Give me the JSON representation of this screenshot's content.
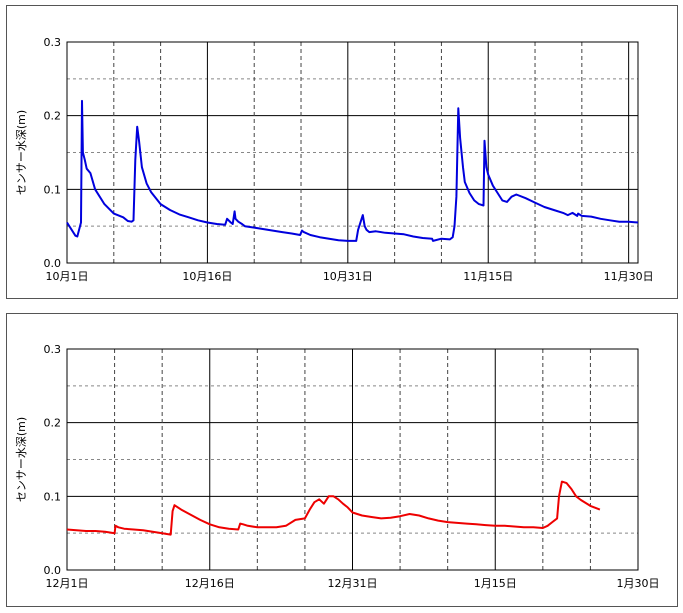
{
  "chart_data": [
    {
      "type": "line",
      "ylabel": "センサー水深(m)",
      "ylim": [
        0,
        0.3
      ],
      "yticks": [
        "0.0",
        "0.1",
        "0.2",
        "0.3"
      ],
      "y_gridlines_dashed": [
        0.05,
        0.15,
        0.25
      ],
      "xlim": [
        0,
        61
      ],
      "xticks": [
        {
          "x": 0,
          "label": "10月1日"
        },
        {
          "x": 15,
          "label": "10月16日"
        },
        {
          "x": 30,
          "label": "10月31日"
        },
        {
          "x": 45,
          "label": "11月15日"
        },
        {
          "x": 60,
          "label": "11月30日"
        }
      ],
      "x_gridlines_dashed": [
        5,
        10,
        20,
        25,
        35,
        40,
        50,
        55
      ],
      "grid": true,
      "series": [
        {
          "color": "#0000dd",
          "x": [
            0,
            0.9,
            1.1,
            1.5,
            1.6,
            1.7,
            1.9,
            2.1,
            2.5,
            3,
            4,
            5,
            6,
            6.5,
            6.9,
            7.1,
            7.3,
            7.5,
            7.7,
            8,
            8.5,
            9,
            10,
            11,
            12,
            13,
            14,
            15,
            16,
            16.9,
            17.1,
            17.5,
            17.7,
            17.9,
            18,
            18.3,
            18.7,
            19,
            20,
            21,
            22,
            23,
            24,
            24.9,
            25.1,
            25.3,
            26,
            27,
            28,
            29,
            30,
            30.9,
            31.1,
            31.6,
            31.8,
            32,
            32.3,
            33,
            34,
            35,
            36,
            37,
            38,
            39,
            39.1,
            40,
            40.9,
            41.2,
            41.4,
            41.6,
            41.8,
            42,
            42.3,
            42.5,
            43,
            43.5,
            44,
            44.5,
            44.6,
            44.8,
            45,
            45.5,
            46,
            46.5,
            47,
            47.5,
            48,
            49,
            50,
            51,
            52,
            53,
            53.5,
            54,
            54.5,
            54.6,
            55,
            56,
            57,
            58,
            59,
            60,
            61
          ],
          "y": [
            0.055,
            0.037,
            0.036,
            0.055,
            0.22,
            0.15,
            0.14,
            0.128,
            0.122,
            0.1,
            0.08,
            0.067,
            0.062,
            0.057,
            0.056,
            0.058,
            0.14,
            0.185,
            0.165,
            0.13,
            0.108,
            0.096,
            0.08,
            0.072,
            0.066,
            0.062,
            0.058,
            0.055,
            0.053,
            0.052,
            0.06,
            0.055,
            0.053,
            0.07,
            0.06,
            0.056,
            0.053,
            0.05,
            0.048,
            0.046,
            0.044,
            0.042,
            0.04,
            0.038,
            0.044,
            0.042,
            0.038,
            0.035,
            0.033,
            0.031,
            0.03,
            0.03,
            0.045,
            0.065,
            0.05,
            0.045,
            0.042,
            0.043,
            0.041,
            0.04,
            0.039,
            0.036,
            0.034,
            0.033,
            0.03,
            0.033,
            0.032,
            0.035,
            0.05,
            0.09,
            0.21,
            0.17,
            0.13,
            0.11,
            0.095,
            0.085,
            0.08,
            0.078,
            0.166,
            0.13,
            0.12,
            0.105,
            0.095,
            0.085,
            0.083,
            0.09,
            0.093,
            0.088,
            0.082,
            0.076,
            0.072,
            0.068,
            0.065,
            0.068,
            0.064,
            0.067,
            0.064,
            0.063,
            0.06,
            0.058,
            0.056,
            0.056,
            0.055
          ]
        }
      ]
    },
    {
      "type": "line",
      "ylabel": "センサー水深(m)",
      "ylim": [
        0,
        0.3
      ],
      "yticks": [
        "0.0",
        "0.1",
        "0.2",
        "0.3"
      ],
      "y_gridlines_dashed": [
        0.05,
        0.15,
        0.25
      ],
      "xlim": [
        0,
        60
      ],
      "xticks": [
        {
          "x": 0,
          "label": "12月1日"
        },
        {
          "x": 15,
          "label": "12月16日"
        },
        {
          "x": 30,
          "label": "12月31日"
        },
        {
          "x": 45,
          "label": "1月15日"
        },
        {
          "x": 60,
          "label": "1月30日"
        }
      ],
      "x_gridlines_dashed": [
        5,
        10,
        20,
        25,
        35,
        40,
        50,
        55
      ],
      "grid": true,
      "series": [
        {
          "color": "#ee0000",
          "x": [
            0,
            1,
            2,
            3,
            4,
            5,
            5.1,
            5.4,
            6,
            7,
            8,
            9,
            10,
            10.9,
            11.1,
            11.3,
            12,
            13,
            14,
            15,
            16,
            17,
            18,
            18.2,
            18.5,
            19,
            20,
            21,
            22,
            23,
            24,
            25,
            25.5,
            26,
            26.5,
            27,
            27.5,
            28,
            28.5,
            29,
            29.5,
            30,
            31,
            32,
            33,
            34,
            35,
            36,
            37,
            38,
            39,
            40,
            41,
            42,
            43,
            44,
            45,
            46,
            47,
            48,
            49,
            50,
            50.5,
            51,
            51.5,
            51.7,
            52,
            52.5,
            53,
            53.5,
            54,
            55,
            56
          ],
          "y": [
            0.055,
            0.054,
            0.053,
            0.053,
            0.052,
            0.05,
            0.06,
            0.058,
            0.056,
            0.055,
            0.054,
            0.052,
            0.05,
            0.048,
            0.08,
            0.088,
            0.082,
            0.075,
            0.068,
            0.062,
            0.058,
            0.056,
            0.055,
            0.063,
            0.062,
            0.06,
            0.058,
            0.058,
            0.058,
            0.06,
            0.068,
            0.07,
            0.082,
            0.092,
            0.096,
            0.09,
            0.1,
            0.1,
            0.096,
            0.09,
            0.085,
            0.078,
            0.074,
            0.072,
            0.07,
            0.071,
            0.073,
            0.076,
            0.074,
            0.07,
            0.067,
            0.065,
            0.064,
            0.063,
            0.062,
            0.061,
            0.06,
            0.06,
            0.059,
            0.058,
            0.058,
            0.057,
            0.06,
            0.065,
            0.07,
            0.1,
            0.12,
            0.118,
            0.11,
            0.1,
            0.095,
            0.087,
            0.082
          ]
        }
      ]
    }
  ]
}
